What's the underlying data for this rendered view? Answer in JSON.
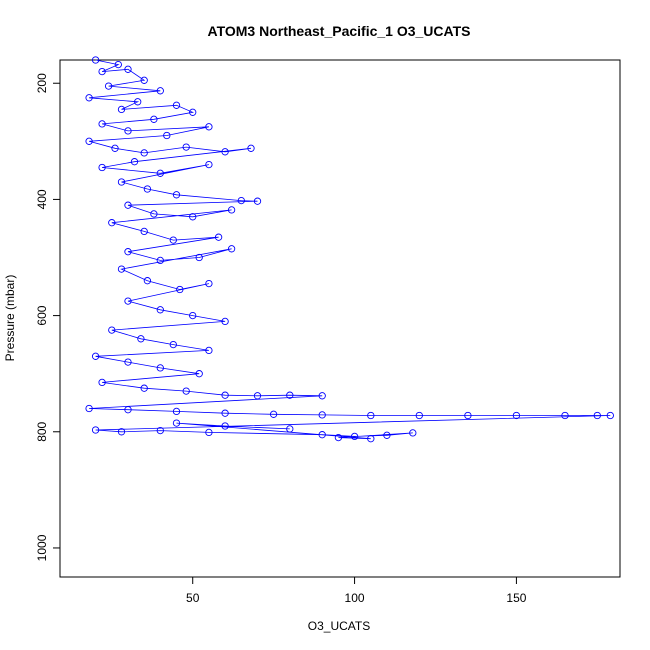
{
  "chart_data": {
    "type": "scatter",
    "title": "ATOM3 Northeast_Pacific_1 O3_UCATS",
    "xlabel": "O3_UCATS",
    "ylabel": "Pressure (mbar)",
    "xlim": [
      9,
      182
    ],
    "ylim": [
      1050,
      160
    ],
    "y_reversed": true,
    "x_ticks": [
      50,
      100,
      150
    ],
    "y_ticks": [
      200,
      400,
      600,
      800,
      1000
    ],
    "grid": false,
    "series": [
      {
        "marker": "open-circle",
        "line": true,
        "color": "#0000ff",
        "points": [
          [
            20,
            160
          ],
          [
            27,
            168
          ],
          [
            22,
            180
          ],
          [
            30,
            176
          ],
          [
            35,
            195
          ],
          [
            24,
            205
          ],
          [
            40,
            213
          ],
          [
            18,
            225
          ],
          [
            33,
            232
          ],
          [
            28,
            245
          ],
          [
            45,
            238
          ],
          [
            50,
            250
          ],
          [
            38,
            262
          ],
          [
            22,
            270
          ],
          [
            30,
            282
          ],
          [
            55,
            275
          ],
          [
            42,
            290
          ],
          [
            18,
            300
          ],
          [
            26,
            312
          ],
          [
            35,
            320
          ],
          [
            48,
            310
          ],
          [
            60,
            318
          ],
          [
            68,
            312
          ],
          [
            32,
            335
          ],
          [
            22,
            345
          ],
          [
            40,
            355
          ],
          [
            55,
            340
          ],
          [
            28,
            370
          ],
          [
            36,
            382
          ],
          [
            45,
            392
          ],
          [
            65,
            402
          ],
          [
            70,
            403
          ],
          [
            30,
            410
          ],
          [
            38,
            425
          ],
          [
            50,
            430
          ],
          [
            62,
            418
          ],
          [
            25,
            440
          ],
          [
            35,
            455
          ],
          [
            44,
            470
          ],
          [
            58,
            465
          ],
          [
            30,
            490
          ],
          [
            40,
            505
          ],
          [
            52,
            500
          ],
          [
            62,
            485
          ],
          [
            28,
            520
          ],
          [
            36,
            540
          ],
          [
            46,
            555
          ],
          [
            55,
            545
          ],
          [
            30,
            575
          ],
          [
            40,
            590
          ],
          [
            50,
            600
          ],
          [
            60,
            610
          ],
          [
            25,
            625
          ],
          [
            34,
            640
          ],
          [
            44,
            650
          ],
          [
            55,
            660
          ],
          [
            20,
            670
          ],
          [
            30,
            680
          ],
          [
            40,
            690
          ],
          [
            52,
            700
          ],
          [
            22,
            715
          ],
          [
            35,
            725
          ],
          [
            48,
            730
          ],
          [
            60,
            737
          ],
          [
            70,
            738
          ],
          [
            80,
            737
          ],
          [
            90,
            738
          ],
          [
            18,
            760
          ],
          [
            30,
            762
          ],
          [
            45,
            765
          ],
          [
            60,
            768
          ],
          [
            75,
            770
          ],
          [
            90,
            771
          ],
          [
            105,
            772
          ],
          [
            120,
            772
          ],
          [
            135,
            772
          ],
          [
            150,
            772
          ],
          [
            165,
            772
          ],
          [
            175,
            772
          ],
          [
            179,
            772
          ],
          [
            20,
            797
          ],
          [
            28,
            800
          ],
          [
            40,
            798
          ],
          [
            55,
            801
          ],
          [
            90,
            805
          ],
          [
            100,
            808
          ],
          [
            110,
            806
          ],
          [
            118,
            802
          ],
          [
            95,
            810
          ],
          [
            105,
            812
          ],
          [
            45,
            785
          ],
          [
            60,
            790
          ],
          [
            80,
            795
          ]
        ]
      }
    ]
  }
}
